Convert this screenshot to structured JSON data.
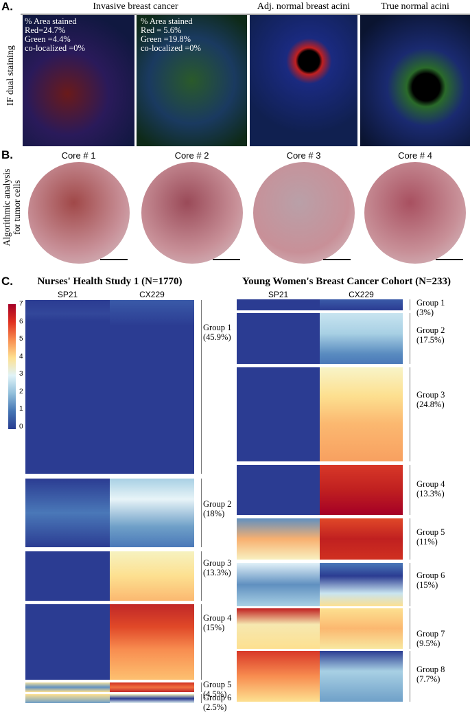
{
  "panel_a": {
    "label": "A.",
    "headers": [
      "Invasive breast cancer",
      "Adj. normal breast acini",
      "True normal acini"
    ],
    "side_label": "IF dual staining",
    "overlays": [
      [
        "% Area stained",
        "Red=24.7%",
        "Green =4.4%",
        "co-localized =0%"
      ],
      [
        "% Area stained",
        "Red = 5.6%",
        "Green =19.8%",
        "co-localized =0%"
      ]
    ]
  },
  "panel_b": {
    "label": "B.",
    "cores": [
      "Core # 1",
      "Core # 2",
      "Core # 3",
      "Core # 4"
    ],
    "side_label": [
      "Algorithmic analysis",
      "for tumor cells"
    ]
  },
  "panel_c": {
    "label": "C.",
    "colorbar_ticks": [
      7,
      6,
      5,
      4,
      3,
      2,
      1,
      0
    ],
    "cohorts": [
      {
        "title": "Nurses' Health Study 1 (N=1770)",
        "columns": [
          "SP21",
          "CX229"
        ],
        "groups": [
          {
            "name": "Group 1",
            "share": "(45.9%)"
          },
          {
            "name": "Group 2",
            "share": "(18%)"
          },
          {
            "name": "Group 3",
            "share": "(13.3%)"
          },
          {
            "name": "Group 4",
            "share": "(15%)"
          },
          {
            "name": "Group 5",
            "share": "(4.5%)"
          },
          {
            "name": "Group 6",
            "share": "(2.5%)"
          }
        ]
      },
      {
        "title": "Young Women's Breast Cancer Cohort (N=233)",
        "columns": [
          "SP21",
          "CX229"
        ],
        "groups": [
          {
            "name": "Group 1",
            "share": "(3%)"
          },
          {
            "name": "Group 2",
            "share": "(17.5%)"
          },
          {
            "name": "Group 3",
            "share": "(24.8%)"
          },
          {
            "name": "Group 4",
            "share": "(13.3%)"
          },
          {
            "name": "Group 5",
            "share": "(11%)"
          },
          {
            "name": "Group 6",
            "share": "(15%)"
          },
          {
            "name": "Group 7",
            "share": "(9.5%)"
          },
          {
            "name": "Group 8",
            "share": "(7.7%)"
          }
        ]
      }
    ]
  }
}
